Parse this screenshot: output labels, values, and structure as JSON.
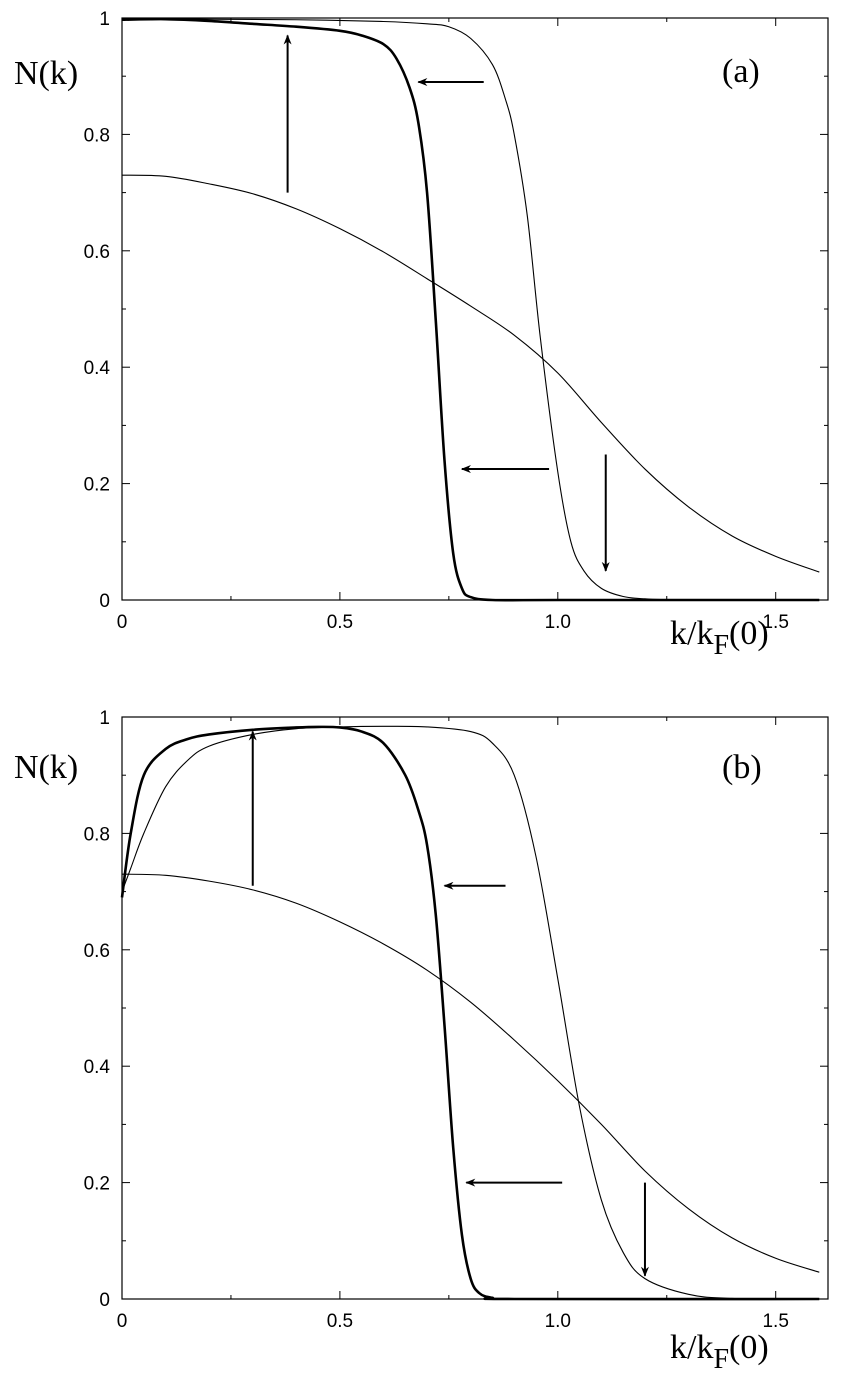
{
  "chart_data": [
    {
      "type": "line",
      "panel_label": "(a)",
      "xlabel": "k/k_F(0)",
      "xlabel_main": "k/k",
      "xlabel_sub": "F",
      "xlabel_tail": "(0)",
      "ylabel": "N(k)",
      "xlim": [
        0,
        1.62
      ],
      "ylim": [
        0,
        1
      ],
      "xticks": [
        0,
        0.5,
        1.0,
        1.5
      ],
      "xtick_labels": [
        "0",
        "0.5",
        "1.0",
        "1.5"
      ],
      "yticks": [
        0,
        0.2,
        0.4,
        0.6,
        0.8,
        1
      ],
      "ytick_labels": [
        "0",
        "0.2",
        "0.4",
        "0.6",
        "0.8",
        "1"
      ],
      "grid": false,
      "series": [
        {
          "style": "thin",
          "x": [
            0,
            0.1,
            0.2,
            0.3,
            0.4,
            0.5,
            0.6,
            0.7,
            0.8,
            0.9,
            1.0,
            1.1,
            1.2,
            1.3,
            1.4,
            1.5,
            1.6
          ],
          "y": [
            0.73,
            0.728,
            0.715,
            0.698,
            0.672,
            0.638,
            0.598,
            0.552,
            0.505,
            0.455,
            0.39,
            0.305,
            0.225,
            0.16,
            0.11,
            0.075,
            0.048
          ]
        },
        {
          "style": "thin",
          "x": [
            0,
            0.2,
            0.4,
            0.6,
            0.7,
            0.75,
            0.8,
            0.85,
            0.88,
            0.9,
            0.93,
            0.96,
            1.0,
            1.03,
            1.06,
            1.1,
            1.15,
            1.2,
            1.3,
            1.6
          ],
          "y": [
            1.0,
            0.998,
            0.997,
            0.994,
            0.99,
            0.985,
            0.965,
            0.92,
            0.86,
            0.8,
            0.66,
            0.45,
            0.22,
            0.1,
            0.05,
            0.02,
            0.006,
            0.002,
            0.0,
            0.0
          ],
          "arrow": "down"
        },
        {
          "style": "thick",
          "x": [
            0,
            0.1,
            0.2,
            0.3,
            0.4,
            0.5,
            0.55,
            0.6,
            0.63,
            0.66,
            0.68,
            0.7,
            0.72,
            0.74,
            0.76,
            0.78,
            0.8,
            0.85,
            1.0,
            1.6
          ],
          "y": [
            0.997,
            0.998,
            0.995,
            0.99,
            0.985,
            0.978,
            0.97,
            0.955,
            0.93,
            0.88,
            0.82,
            0.7,
            0.48,
            0.24,
            0.08,
            0.02,
            0.005,
            0.0,
            0.0,
            0.0
          ],
          "arrow": "up"
        }
      ],
      "arrows": [
        {
          "from": [
            0.38,
            0.7
          ],
          "to": [
            0.38,
            0.97
          ]
        },
        {
          "from": [
            0.83,
            0.89
          ],
          "to": [
            0.68,
            0.89
          ]
        },
        {
          "from": [
            0.98,
            0.225
          ],
          "to": [
            0.78,
            0.225
          ]
        },
        {
          "from": [
            1.11,
            0.25
          ],
          "to": [
            1.11,
            0.05
          ]
        }
      ]
    },
    {
      "type": "line",
      "panel_label": "(b)",
      "xlabel": "k/k_F(0)",
      "xlabel_main": "k/k",
      "xlabel_sub": "F",
      "xlabel_tail": "(0)",
      "ylabel": "N(k)",
      "xlim": [
        0,
        1.62
      ],
      "ylim": [
        0,
        1
      ],
      "xticks": [
        0,
        0.5,
        1.0,
        1.5
      ],
      "xtick_labels": [
        "0",
        "0.5",
        "1.0",
        "1.5"
      ],
      "yticks": [
        0,
        0.2,
        0.4,
        0.6,
        0.8,
        1
      ],
      "ytick_labels": [
        "0",
        "0.2",
        "0.4",
        "0.6",
        "0.8",
        "1"
      ],
      "grid": false,
      "series": [
        {
          "style": "thin",
          "x": [
            0,
            0.1,
            0.2,
            0.3,
            0.4,
            0.5,
            0.6,
            0.7,
            0.8,
            0.9,
            1.0,
            1.1,
            1.2,
            1.3,
            1.4,
            1.5,
            1.6
          ],
          "y": [
            0.73,
            0.728,
            0.718,
            0.703,
            0.68,
            0.648,
            0.61,
            0.565,
            0.51,
            0.445,
            0.375,
            0.3,
            0.22,
            0.155,
            0.105,
            0.07,
            0.046
          ]
        },
        {
          "style": "thin",
          "x": [
            0,
            0.02,
            0.05,
            0.1,
            0.15,
            0.2,
            0.3,
            0.4,
            0.5,
            0.6,
            0.7,
            0.8,
            0.85,
            0.9,
            0.95,
            1.0,
            1.05,
            1.1,
            1.15,
            1.2,
            1.3,
            1.4,
            1.6
          ],
          "y": [
            0.7,
            0.74,
            0.8,
            0.88,
            0.925,
            0.95,
            0.97,
            0.98,
            0.983,
            0.984,
            0.983,
            0.975,
            0.955,
            0.9,
            0.76,
            0.55,
            0.33,
            0.17,
            0.08,
            0.035,
            0.008,
            0.001,
            0.0
          ],
          "arrow": "down"
        },
        {
          "style": "thick",
          "x": [
            0,
            0.02,
            0.05,
            0.1,
            0.15,
            0.2,
            0.3,
            0.4,
            0.45,
            0.5,
            0.55,
            0.6,
            0.65,
            0.68,
            0.7,
            0.72,
            0.74,
            0.76,
            0.78,
            0.8,
            0.82,
            0.85,
            0.9,
            1.6
          ],
          "y": [
            0.69,
            0.8,
            0.9,
            0.945,
            0.962,
            0.97,
            0.978,
            0.982,
            0.983,
            0.982,
            0.975,
            0.955,
            0.9,
            0.84,
            0.78,
            0.66,
            0.47,
            0.26,
            0.11,
            0.035,
            0.01,
            0.002,
            0.0,
            0.0
          ],
          "arrow": "up"
        }
      ],
      "arrows": [
        {
          "from": [
            0.3,
            0.71
          ],
          "to": [
            0.3,
            0.975
          ]
        },
        {
          "from": [
            0.88,
            0.71
          ],
          "to": [
            0.74,
            0.71
          ]
        },
        {
          "from": [
            1.01,
            0.2
          ],
          "to": [
            0.79,
            0.2
          ]
        },
        {
          "from": [
            1.2,
            0.2
          ],
          "to": [
            1.2,
            0.04
          ]
        }
      ]
    }
  ]
}
